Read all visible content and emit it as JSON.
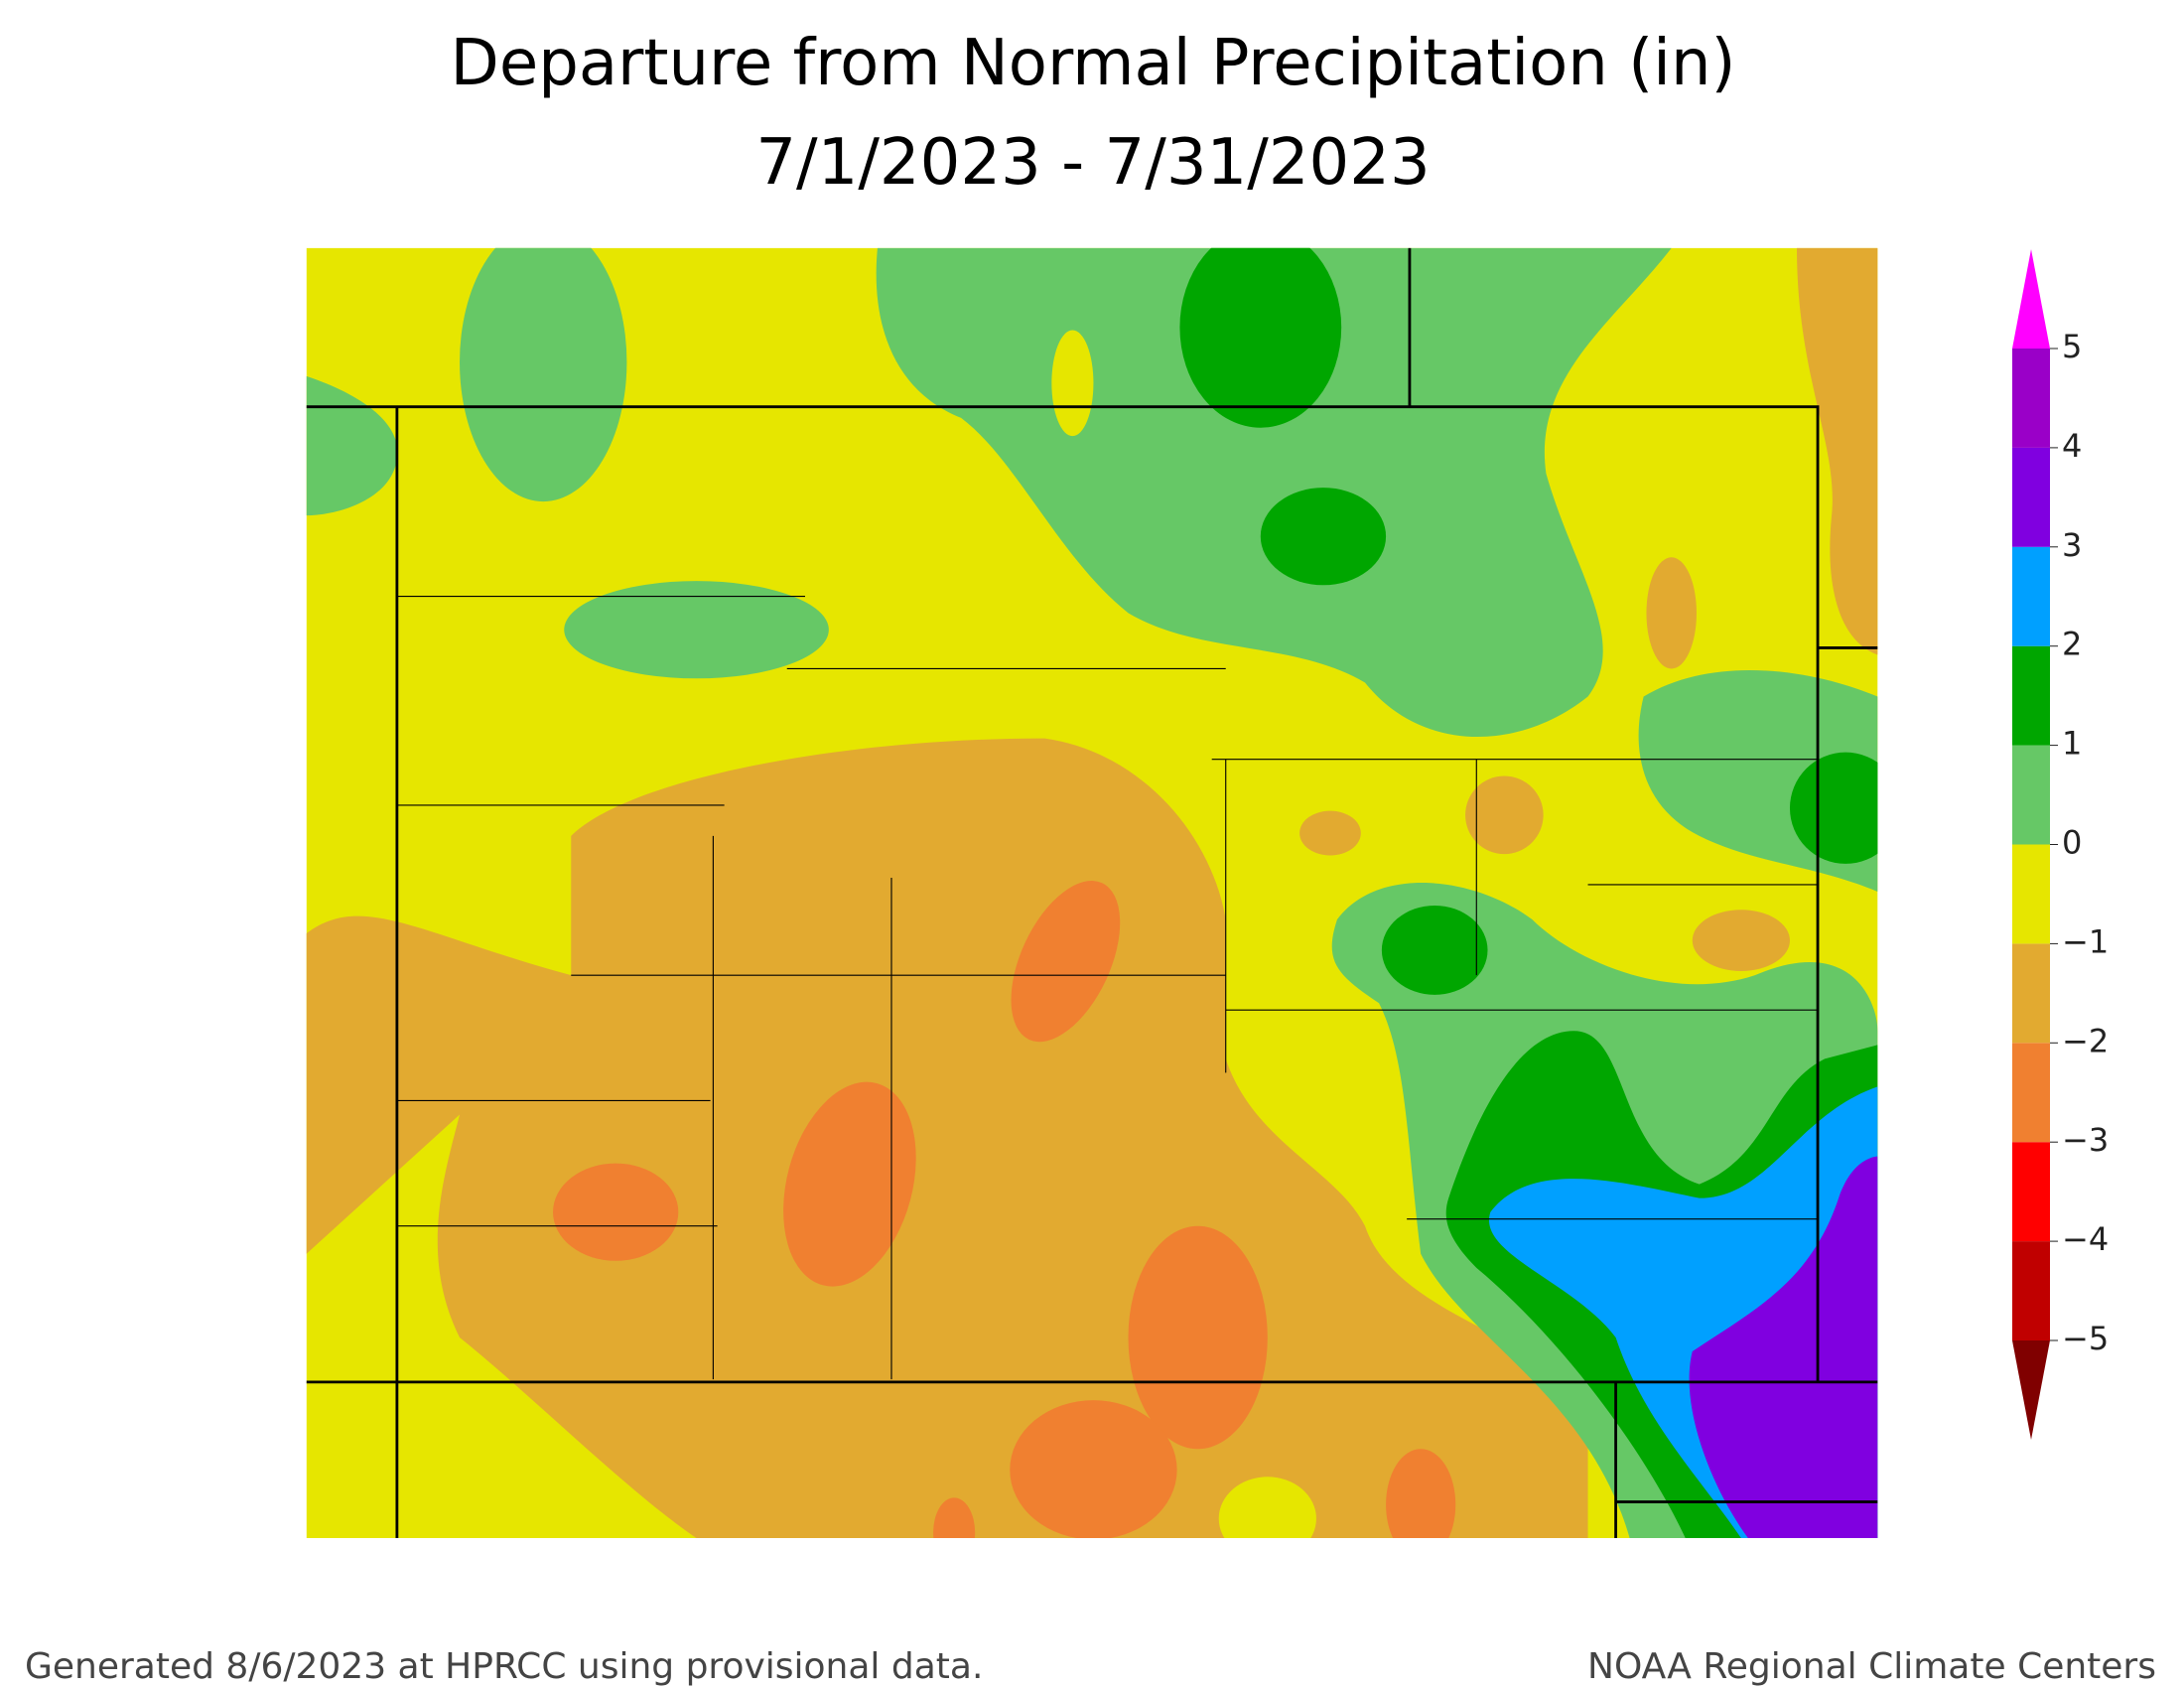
{
  "title": [
    "Departure from Normal Precipitation (in)",
    "7/1/2023 - 7/31/2023"
  ],
  "footer": {
    "left": "Generated 8/6/2023 at HPRCC using provisional data.",
    "right": "NOAA Regional Climate Centers"
  },
  "legend": {
    "ticks": [
      {
        "value": -5,
        "label": "−5"
      },
      {
        "value": -4,
        "label": "−4"
      },
      {
        "value": -3,
        "label": "−3"
      },
      {
        "value": -2,
        "label": "−2"
      },
      {
        "value": -1,
        "label": "−1"
      },
      0,
      1,
      2,
      3,
      4,
      5
    ],
    "colors": [
      "#800000",
      "#c00000",
      "#ff0000",
      "#f08030",
      "#e2aa30",
      "#e6e600",
      "#66c866",
      "#00a600",
      "#00a0ff",
      "#8000e0",
      "#9a00c8",
      "#ff00ff"
    ]
  }
}
